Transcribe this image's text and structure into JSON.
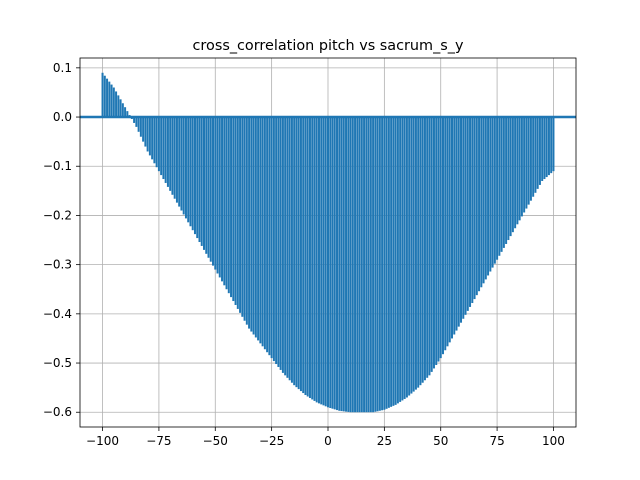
{
  "chart_data": {
    "type": "bar",
    "title": "cross_correlation pitch vs sacrum_s_y",
    "xlabel": "",
    "ylabel": "",
    "xlim": [
      -110,
      110
    ],
    "ylim": [
      -0.63,
      0.12
    ],
    "grid": true,
    "xticks": [
      -100,
      -75,
      -50,
      -25,
      0,
      25,
      50,
      75,
      100
    ],
    "xtick_labels": [
      "−100",
      "−75",
      "−50",
      "−25",
      "0",
      "25",
      "50",
      "75",
      "100"
    ],
    "yticks": [
      0.1,
      0.0,
      -0.1,
      -0.2,
      -0.3,
      -0.4,
      -0.5,
      -0.6
    ],
    "ytick_labels": [
      "0.1",
      "0.0",
      "−0.1",
      "−0.2",
      "−0.3",
      "−0.4",
      "−0.5",
      "−0.6"
    ],
    "baseline": 0,
    "series": [
      {
        "color": "#1f77b4",
        "lags": [
          -100,
          -95,
          -90,
          -85,
          -80,
          -75,
          -70,
          -65,
          -60,
          -55,
          -50,
          -45,
          -40,
          -35,
          -30,
          -25,
          -20,
          -15,
          -10,
          -5,
          0,
          5,
          10,
          15,
          20,
          25,
          30,
          35,
          40,
          45,
          50,
          55,
          60,
          65,
          70,
          75,
          80,
          85,
          90,
          95,
          100
        ],
        "values": [
          0.09,
          0.06,
          0.02,
          -0.02,
          -0.07,
          -0.11,
          -0.15,
          -0.19,
          -0.23,
          -0.27,
          -0.31,
          -0.35,
          -0.39,
          -0.43,
          -0.46,
          -0.49,
          -0.52,
          -0.545,
          -0.565,
          -0.58,
          -0.59,
          -0.597,
          -0.6,
          -0.6,
          -0.6,
          -0.595,
          -0.585,
          -0.57,
          -0.55,
          -0.525,
          -0.49,
          -0.45,
          -0.41,
          -0.37,
          -0.33,
          -0.29,
          -0.25,
          -0.21,
          -0.17,
          -0.13,
          -0.11
        ]
      }
    ]
  }
}
